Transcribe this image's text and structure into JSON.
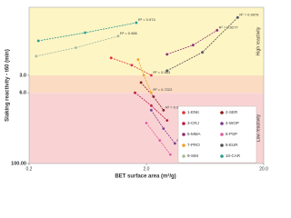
{
  "chart_data": {
    "type": "scatter",
    "xlabel": "BET surface area (m²/g)",
    "ylabel": "Slaking reactivity - t60 (min)",
    "log_x": true,
    "log_y": true,
    "xlim": [
      0.2,
      20
    ],
    "xticks": [
      {
        "value": 0.2,
        "label": "0.2"
      },
      {
        "value": 2,
        "label": "2.0"
      },
      {
        "value": 20,
        "label": "20.0"
      }
    ],
    "ylim": [
      100,
      0.2
    ],
    "yticks": [
      {
        "value": 3,
        "label": "3.0"
      },
      {
        "value": 6,
        "label": "6.0"
      },
      {
        "value": 100,
        "label": "100.00"
      }
    ],
    "band_colors": [
      "#fdf5c4",
      "#fbdcc2",
      "#f9d3d3"
    ],
    "band_labels": [
      "High reactivity",
      "Low reactivity"
    ],
    "series": [
      {
        "name": "1-ENK",
        "color": "#e03030",
        "x": [
          1.0,
          1.5,
          2.2
        ],
        "values": [
          1.5,
          2.0,
          3.0
        ],
        "r2": "R² = 0.983"
      },
      {
        "name": "2-SER",
        "color": "#8b1a1a",
        "x": [
          1.8,
          2.3,
          2.8
        ],
        "values": [
          4,
          7,
          12
        ],
        "r2": "R² = 0.9966"
      },
      {
        "name": "3-CRJ",
        "color": "#c0143c",
        "x": [
          1.6,
          2.2,
          3.0
        ],
        "values": [
          6,
          10,
          18
        ]
      },
      {
        "name": "4-WOP",
        "color": "#7a3a8a",
        "x": [
          2.2,
          2.8,
          3.5
        ],
        "values": [
          12,
          25,
          45
        ],
        "r2": "R² = 0.9856"
      },
      {
        "name": "5-MMA",
        "color": "#8e2a6a",
        "x": [
          3,
          5,
          8
        ],
        "values": [
          1.3,
          0.9,
          0.5
        ],
        "r2": "R² = 0.9277"
      },
      {
        "name": "6-PSP",
        "color": "#e0589a",
        "x": [
          2.0,
          2.6,
          3.2
        ],
        "values": [
          20,
          40,
          70
        ]
      },
      {
        "name": "7-PRO",
        "color": "#f0a020",
        "x": [
          1.7,
          1.9,
          2.2
        ],
        "values": [
          1.6,
          3,
          6
        ],
        "r2": "R² = 0.7222"
      },
      {
        "name": "8-EUR",
        "color": "#505050",
        "x": [
          3,
          6,
          12
        ],
        "values": [
          2.5,
          1.2,
          0.3
        ],
        "r2": "R² = 0.9979"
      },
      {
        "name": "9-SIM",
        "color": "#a8b89a",
        "x": [
          0.23,
          0.5,
          1.15
        ],
        "values": [
          1.4,
          1.0,
          0.63
        ],
        "r2": "R² = 0.985"
      },
      {
        "name": "10-CAR",
        "color": "#2e9a8a",
        "x": [
          0.24,
          0.6,
          1.64
        ],
        "values": [
          0.76,
          0.55,
          0.37
        ],
        "r2": "R² = 0.974"
      }
    ]
  }
}
